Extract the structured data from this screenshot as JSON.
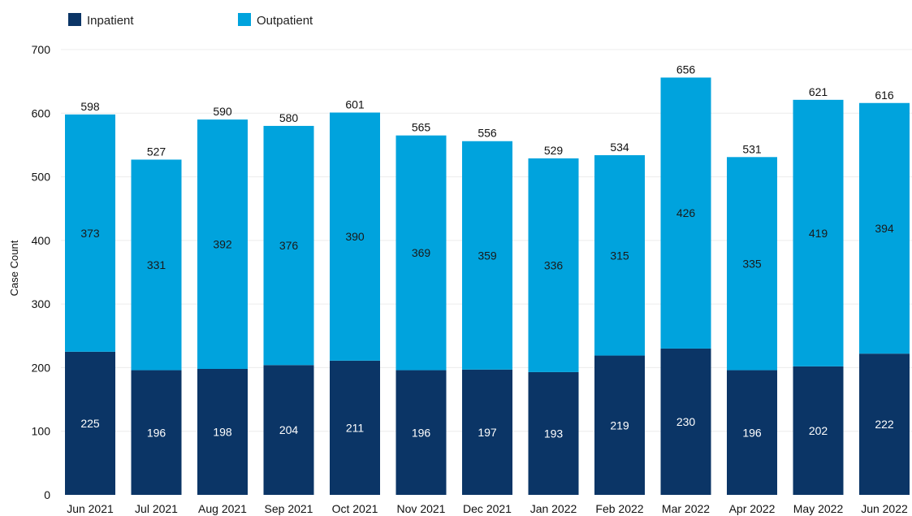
{
  "chart_data": {
    "type": "bar",
    "stacked": true,
    "categories": [
      "Jun 2021",
      "Jul 2021",
      "Aug 2021",
      "Sep 2021",
      "Oct 2021",
      "Nov 2021",
      "Dec 2021",
      "Jan 2022",
      "Feb 2022",
      "Mar 2022",
      "Apr 2022",
      "May 2022",
      "Jun 2022"
    ],
    "series": [
      {
        "name": "Inpatient",
        "color": "#0b3566",
        "values": [
          225,
          196,
          198,
          204,
          211,
          196,
          197,
          193,
          219,
          230,
          196,
          202,
          222
        ]
      },
      {
        "name": "Outpatient",
        "color": "#00a3dd",
        "values": [
          373,
          331,
          392,
          376,
          390,
          369,
          359,
          336,
          315,
          426,
          335,
          419,
          394
        ]
      }
    ],
    "totals": [
      598,
      527,
      590,
      580,
      601,
      565,
      556,
      529,
      534,
      656,
      531,
      621,
      616
    ],
    "ylabel": "Case Count",
    "xlabel": "",
    "title": "",
    "ylim": [
      0,
      700
    ],
    "yticks": [
      0,
      100,
      200,
      300,
      400,
      500,
      600,
      700
    ],
    "grid": true,
    "legend_position": "top-left"
  }
}
